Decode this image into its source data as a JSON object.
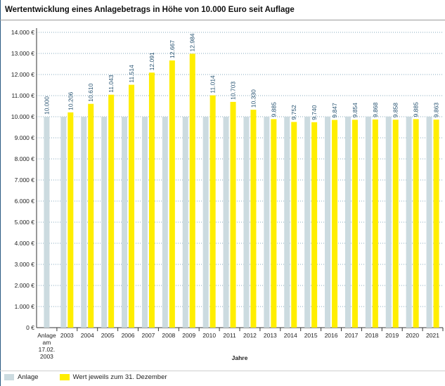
{
  "chart_data": {
    "type": "bar",
    "title": "Wertentwicklung eines Anlagebetrags in Höhe von 10.000 Euro seit Auflage",
    "xlabel": "Jahre",
    "ylabel": "",
    "ylim": [
      0,
      14000
    ],
    "yticks": [
      0,
      1000,
      2000,
      3000,
      4000,
      5000,
      6000,
      7000,
      8000,
      9000,
      10000,
      11000,
      12000,
      13000,
      14000
    ],
    "ytick_labels": [
      "0 €",
      "1.000 €",
      "2.000 €",
      "3.000 €",
      "4.000 €",
      "5.000 €",
      "6.000 €",
      "7.000 €",
      "8.000 €",
      "9.000 €",
      "10.000 €",
      "11.000 €",
      "12.000 €",
      "13.000 €",
      "14.000 €"
    ],
    "categories": [
      "Anlage am 17.02. 2003",
      "2003",
      "2004",
      "2005",
      "2006",
      "2007",
      "2008",
      "2009",
      "2010",
      "2011",
      "2012",
      "2013",
      "2014",
      "2015",
      "2016",
      "2017",
      "2018",
      "2019",
      "2020",
      "2021"
    ],
    "category_lines": [
      [
        "Anlage",
        "am",
        "17.02.",
        "2003"
      ],
      [
        "2003"
      ],
      [
        "2004"
      ],
      [
        "2005"
      ],
      [
        "2006"
      ],
      [
        "2007"
      ],
      [
        "2008"
      ],
      [
        "2009"
      ],
      [
        "2010"
      ],
      [
        "2011"
      ],
      [
        "2012"
      ],
      [
        "2013"
      ],
      [
        "2014"
      ],
      [
        "2015"
      ],
      [
        "2016"
      ],
      [
        "2017"
      ],
      [
        "2018"
      ],
      [
        "2019"
      ],
      [
        "2020"
      ],
      [
        "2021"
      ]
    ],
    "series": [
      {
        "name": "Anlage",
        "color": "#ccdbe0",
        "values": [
          10000,
          10000,
          10000,
          10000,
          10000,
          10000,
          10000,
          10000,
          10000,
          10000,
          10000,
          10000,
          10000,
          10000,
          10000,
          10000,
          10000,
          10000,
          10000,
          10000
        ]
      },
      {
        "name": "Wert jeweils zum 31. Dezember",
        "color": "#ffee00",
        "values": [
          null,
          10206,
          10610,
          11043,
          11514,
          12091,
          12667,
          12984,
          11014,
          10703,
          10330,
          9885,
          9752,
          9740,
          9847,
          9854,
          9868,
          9858,
          9885,
          9863
        ]
      }
    ],
    "data_labels": [
      "10.000",
      "10.206",
      "10.610",
      "11.043",
      "11.514",
      "12.091",
      "12.667",
      "12.984",
      "11.014",
      "10.703",
      "10.330",
      "9.885",
      "9.752",
      "9.740",
      "9.847",
      "9.854",
      "9.868",
      "9.858",
      "9.885",
      "9.863"
    ],
    "grid": true,
    "legend_position": "bottom-left"
  }
}
